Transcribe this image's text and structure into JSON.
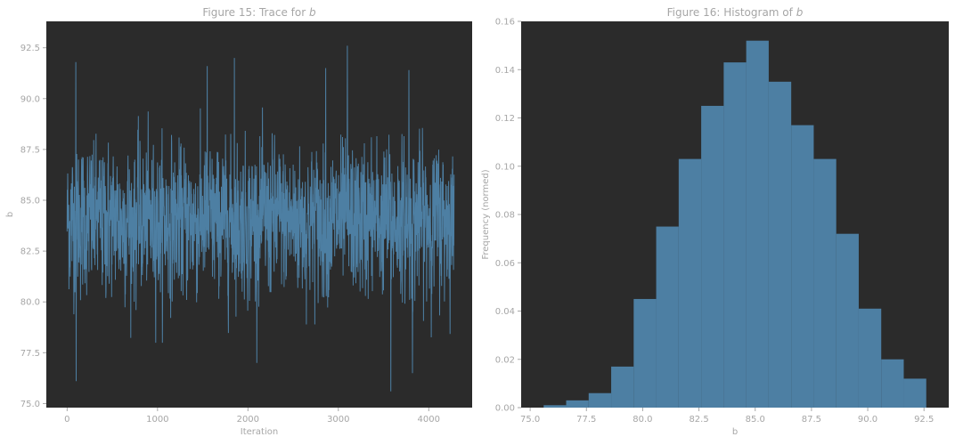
{
  "chart_data": [
    {
      "type": "line",
      "title": "Figure 15: Trace for b",
      "title_prefix": "Figure 15: Trace for",
      "title_var": "b",
      "xlabel": "Iteration",
      "ylabel": "b",
      "xlim": [
        -230,
        4480
      ],
      "ylim": [
        74.8,
        93.8
      ],
      "xticks": [
        0,
        1000,
        2000,
        3000,
        4000
      ],
      "xtick_labels": [
        "0",
        "1000",
        "2000",
        "3000",
        "4000"
      ],
      "yticks": [
        75.0,
        77.5,
        80.0,
        82.5,
        85.0,
        87.5,
        90.0,
        92.5
      ],
      "ytick_labels": [
        "75.0",
        "77.5",
        "80.0",
        "82.5",
        "85.0",
        "87.5",
        "90.0",
        "92.5"
      ],
      "grid": false,
      "n_iterations": 4280,
      "mean": 84.0,
      "std": 2.3,
      "extremes": [
        {
          "x": 95,
          "y": 91.8
        },
        {
          "x": 100,
          "y": 76.1
        },
        {
          "x": 1550,
          "y": 91.6
        },
        {
          "x": 1850,
          "y": 92.0
        },
        {
          "x": 2860,
          "y": 91.5
        },
        {
          "x": 3100,
          "y": 92.6
        },
        {
          "x": 3580,
          "y": 75.6
        },
        {
          "x": 3780,
          "y": 91.4
        },
        {
          "x": 3820,
          "y": 76.5
        }
      ],
      "series_color": "#4d7fa3",
      "face_color": "#2b2b2b"
    },
    {
      "type": "bar",
      "title": "Figure 16: Histogram of b",
      "title_prefix": "Figure 16: Histogram of",
      "title_var": "b",
      "xlabel": "b",
      "ylabel": "Frequency (normed)",
      "xlim": [
        74.6,
        93.6
      ],
      "ylim": [
        0,
        0.16
      ],
      "xticks": [
        75.0,
        77.5,
        80.0,
        82.5,
        85.0,
        87.5,
        90.0,
        92.5
      ],
      "xtick_labels": [
        "75.0",
        "77.5",
        "80.0",
        "82.5",
        "85.0",
        "87.5",
        "90.0",
        "92.5"
      ],
      "yticks": [
        0.0,
        0.02,
        0.04,
        0.06,
        0.08,
        0.1,
        0.12,
        0.14,
        0.16
      ],
      "ytick_labels": [
        "0.00",
        "0.02",
        "0.04",
        "0.06",
        "0.08",
        "0.10",
        "0.12",
        "0.14",
        "0.16"
      ],
      "grid": false,
      "bin_edges": [
        75.6,
        76.6,
        77.6,
        78.6,
        79.6,
        80.6,
        81.6,
        82.6,
        83.6,
        84.6,
        85.6,
        86.6,
        87.6,
        88.6,
        89.6,
        90.6,
        91.6,
        92.6
      ],
      "values": [
        0.001,
        0.003,
        0.006,
        0.017,
        0.045,
        0.075,
        0.103,
        0.125,
        0.143,
        0.152,
        0.135,
        0.117,
        0.103,
        0.072,
        0.041,
        0.02,
        0.012,
        0.005
      ],
      "series_color": "#4d7fa3",
      "face_color": "#2b2b2b"
    }
  ]
}
